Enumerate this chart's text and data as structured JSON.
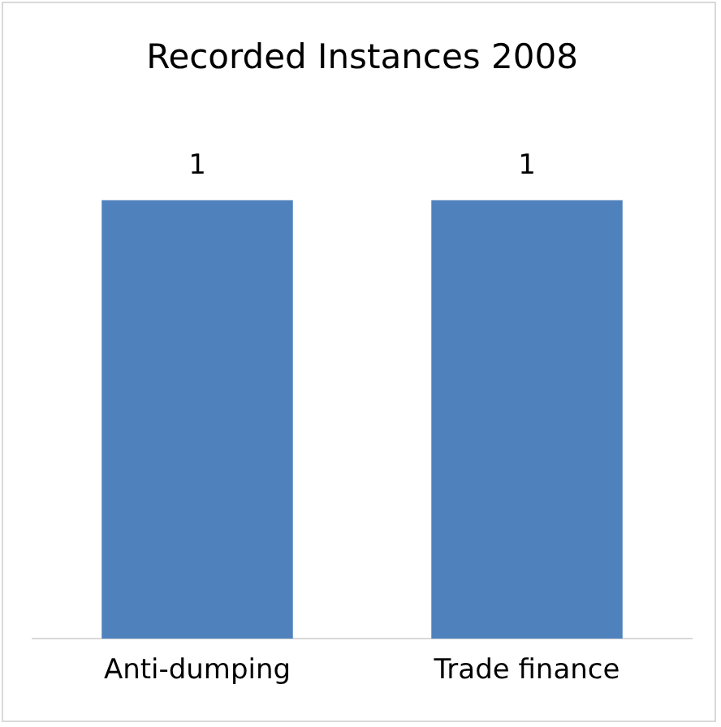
{
  "chart_data": {
    "type": "bar",
    "title": "Recorded Instances 2008",
    "categories": [
      "Anti-dumping",
      "Trade finance"
    ],
    "values": [
      1,
      1
    ],
    "color": "#4f81bd",
    "data_labels": true
  }
}
